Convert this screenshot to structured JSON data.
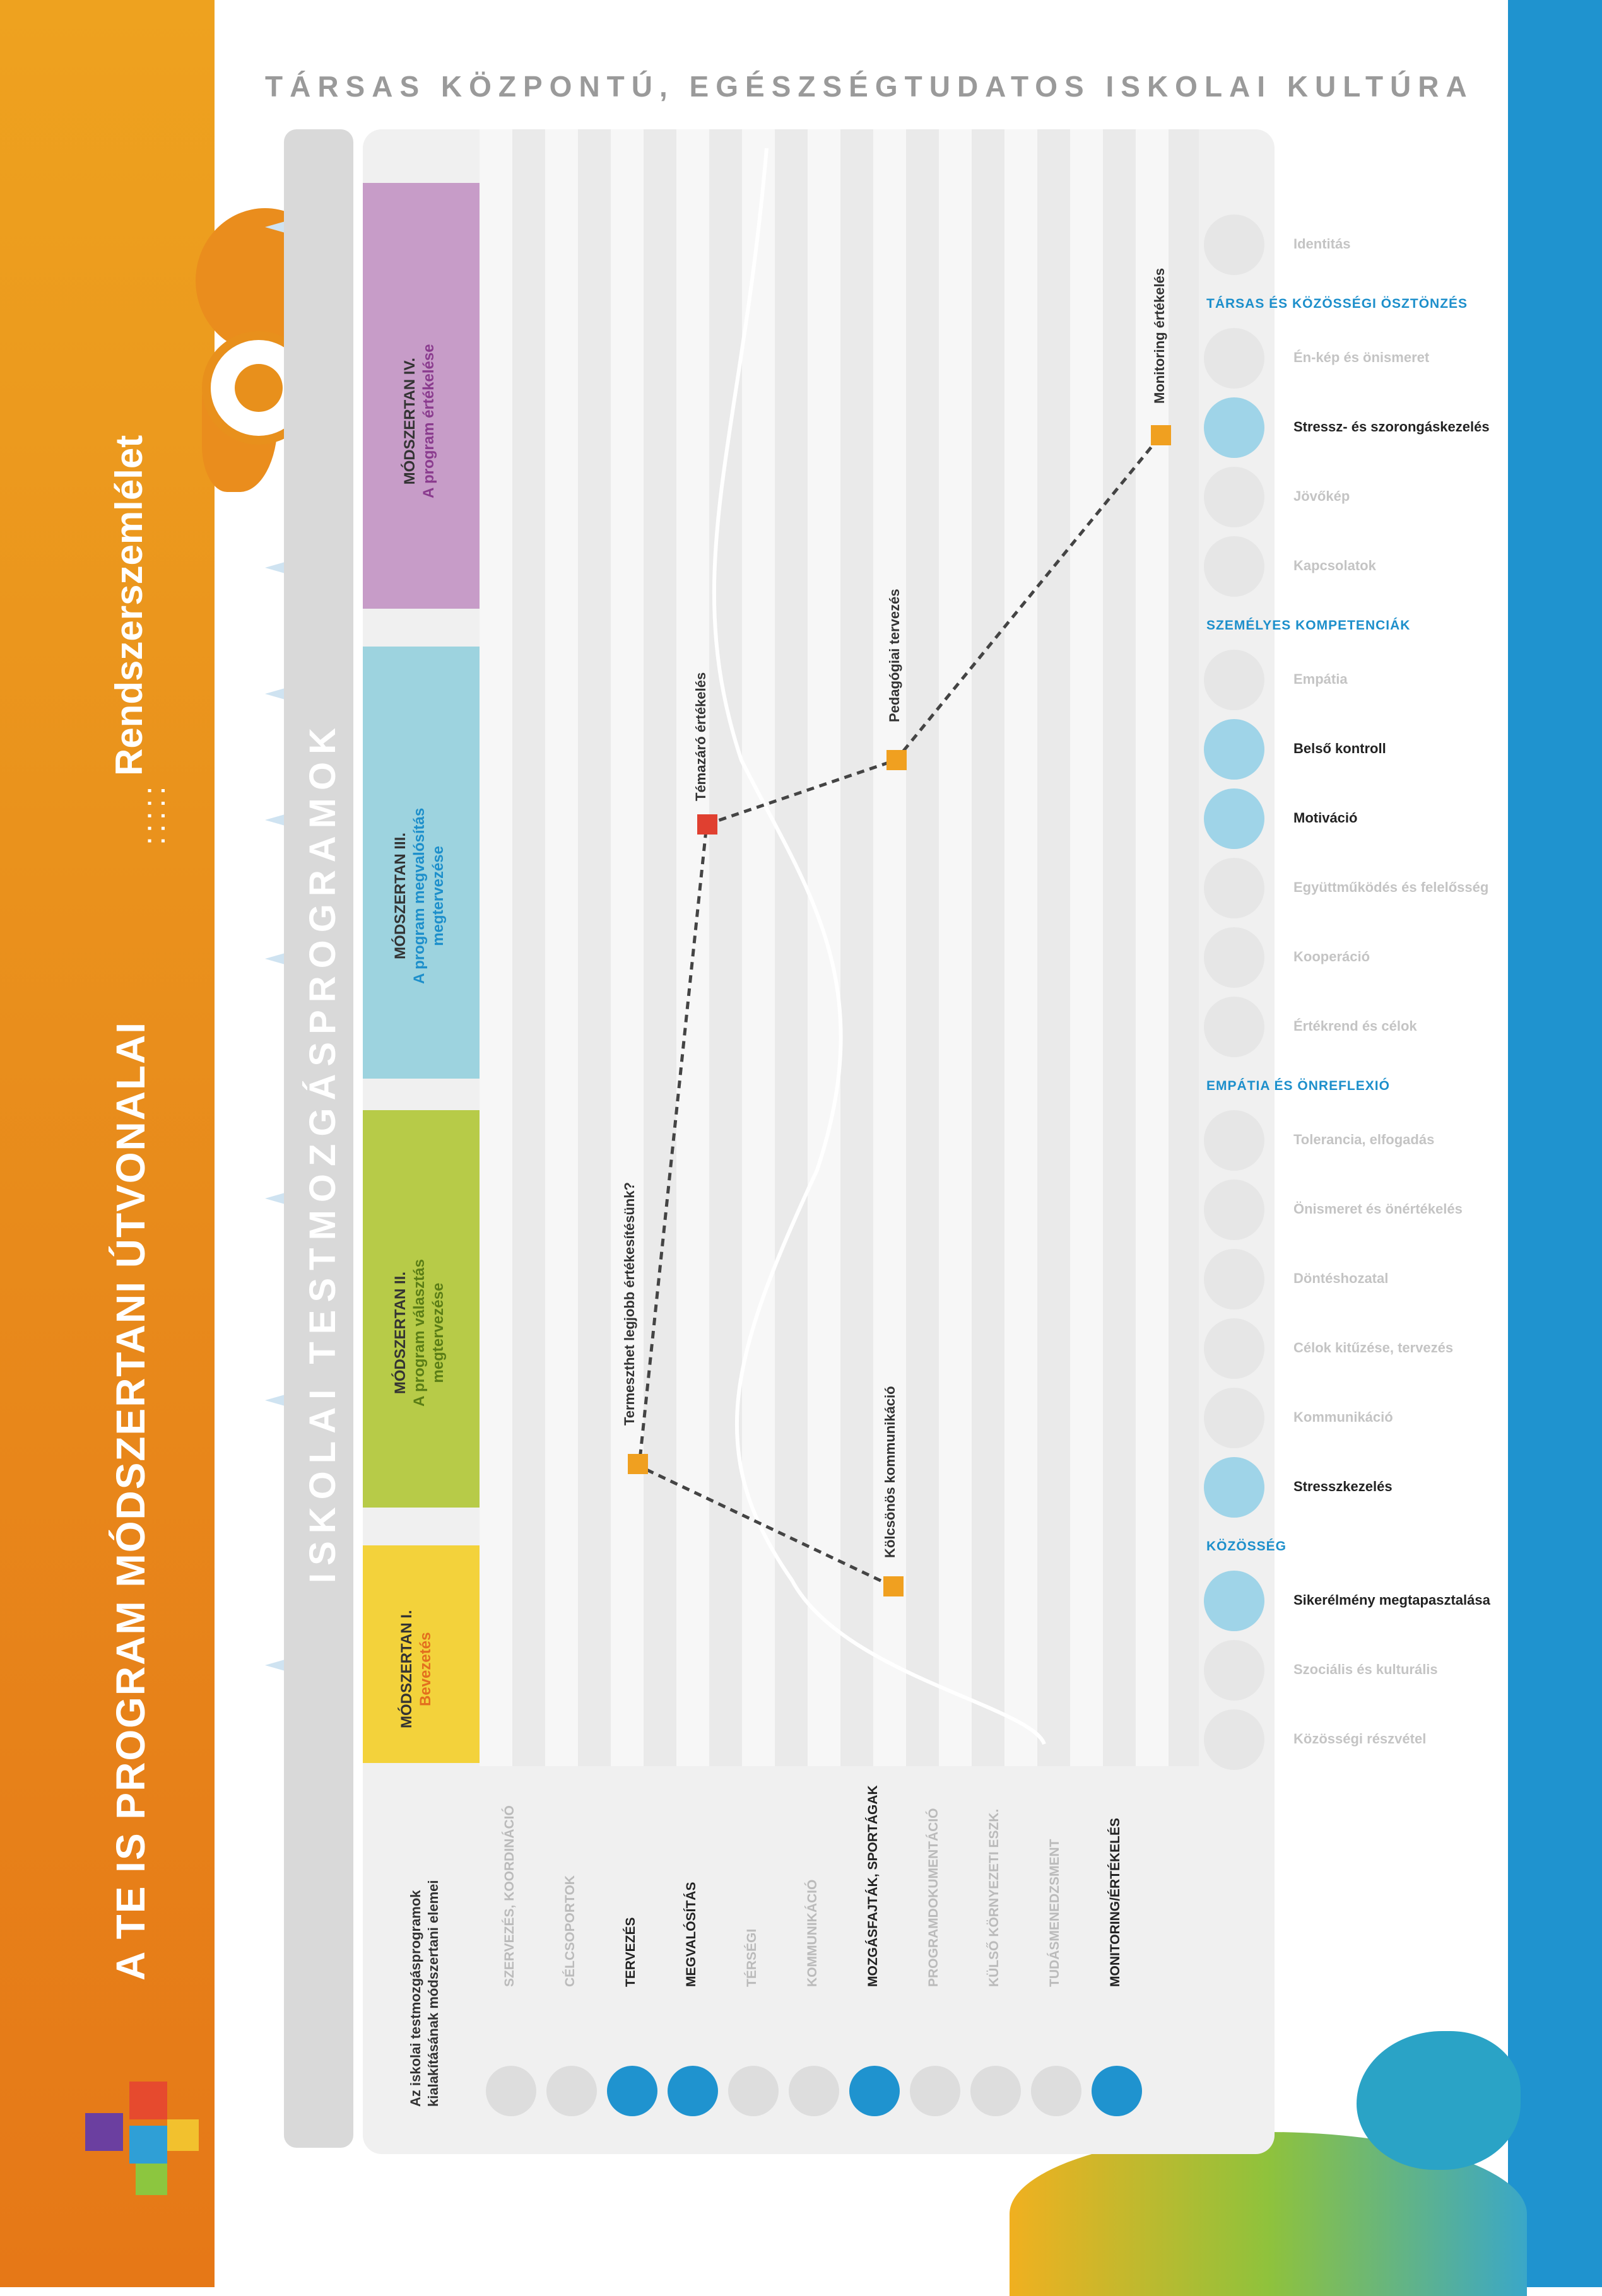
{
  "header": {
    "top_title": "TÁRSAS KÖZPONTÚ, EGÉSZSÉGTUDATOS ISKOLAI KULTÚRA"
  },
  "sidebar": {
    "main_title": "A TE IS PROGRAM MÓDSZERTANI ÚTVONALAI",
    "separator": ":::::",
    "subtitle": "Rendszerszemlélet"
  },
  "lane_label": "ISKOLAI TESTMOZGÁSPROGRAMOK",
  "modules": [
    {
      "line1": "MÓDSZERTAN I.",
      "line2": "Bevezetés",
      "color": "#f3d23b",
      "text_color": "#e36f1e"
    },
    {
      "line1": "MÓDSZERTAN II.",
      "line2": "A program választás",
      "line3": "megtervezése",
      "color": "#b7cb48",
      "text_color": "#5a7d16"
    },
    {
      "line1": "MÓDSZERTAN III.",
      "line2": "A program megvalósítás",
      "line3": "megtervezése",
      "color": "#9dd3df",
      "text_color": "#1d8fcb"
    },
    {
      "line1": "MÓDSZERTAN IV.",
      "line2": "A program értékelése",
      "color": "#c79cc8",
      "text_color": "#8a3b8e"
    }
  ],
  "rows_header": {
    "line1": "Az iskolai testmozgásprogramok",
    "line2": "kialakításának módszertani elemei"
  },
  "rows": [
    {
      "label": "SZERVEZÉS, KOORDINÁCIÓ",
      "active": false
    },
    {
      "label": "CÉLCSOPORTOK",
      "active": false
    },
    {
      "label": "TERVEZÉS",
      "active": true
    },
    {
      "label": "MEGVALÓSÍTÁS",
      "active": true
    },
    {
      "label": "TÉRSÉGI",
      "active": false
    },
    {
      "label": "KOMMUNIKÁCIÓ",
      "active": false
    },
    {
      "label": "MOZGÁSFAJTÁK, SPORTÁGAK",
      "active": true
    },
    {
      "label": "PROGRAMDOKUMENTÁCIÓ",
      "active": false
    },
    {
      "label": "KÜLSŐ KÖRNYEZETI ESZK.",
      "active": false
    },
    {
      "label": "TUDÁSMENEDZSMENT",
      "active": false
    },
    {
      "label": "MONITORING/ÉRTÉKELÉS",
      "active": true
    }
  ],
  "path_points": [
    {
      "label": "Kölcsönös kommunikáció"
    },
    {
      "label": "Termeszthet legjobb értékesítésünk?"
    },
    {
      "label": "Témazáró értékelés"
    },
    {
      "label": "Pedagógiai tervezés"
    },
    {
      "label": "Monitoring értékelés"
    }
  ],
  "right_panel": {
    "sections": [
      {
        "title": "",
        "items": [
          {
            "label": "Identitás",
            "active": false
          }
        ]
      },
      {
        "title": "TÁRSAS ÉS KÖZÖSSÉGI ÖSZTÖNZÉS",
        "items": [
          {
            "label": "Én-kép és önismeret",
            "active": false
          },
          {
            "label": "Stressz- és szorongáskezelés",
            "active": true
          },
          {
            "label": "Jövőkép",
            "active": false
          },
          {
            "label": "Kapcsolatok",
            "active": false
          }
        ]
      },
      {
        "title": "SZEMÉLYES KOMPETENCIÁK",
        "items": [
          {
            "label": "Empátia",
            "active": false
          },
          {
            "label": "Belső kontroll",
            "active": true
          },
          {
            "label": "Motiváció",
            "active": true
          },
          {
            "label": "Együttműködés és felelősség",
            "active": false
          },
          {
            "label": "Kooperáció",
            "active": false
          },
          {
            "label": "Értékrend és célok",
            "active": false
          }
        ]
      },
      {
        "title": "EMPÁTIA ÉS ÖNREFLEXIÓ",
        "items": [
          {
            "label": "Tolerancia, elfogadás",
            "active": false
          },
          {
            "label": "Önismeret és önértékelés",
            "active": false
          },
          {
            "label": "Döntéshozatal",
            "active": false
          },
          {
            "label": "Célok kitűzése, tervezés",
            "active": false
          },
          {
            "label": "Kommunikáció",
            "active": false
          },
          {
            "label": "Stresszkezelés",
            "active": true
          }
        ]
      },
      {
        "title": "KÖZÖSSÉG",
        "items": [
          {
            "label": "Sikerélmény megtapasztalása",
            "active": true
          },
          {
            "label": "Szociális és kulturális",
            "active": false
          },
          {
            "label": "Közösségi részvétel",
            "active": false
          }
        ]
      }
    ]
  },
  "colors": {
    "orange": "#e8901c",
    "blue": "#1f93cf",
    "marker_orange": "#f0a020",
    "marker_red": "#e04030",
    "grey_panel": "#e4e4e4"
  }
}
